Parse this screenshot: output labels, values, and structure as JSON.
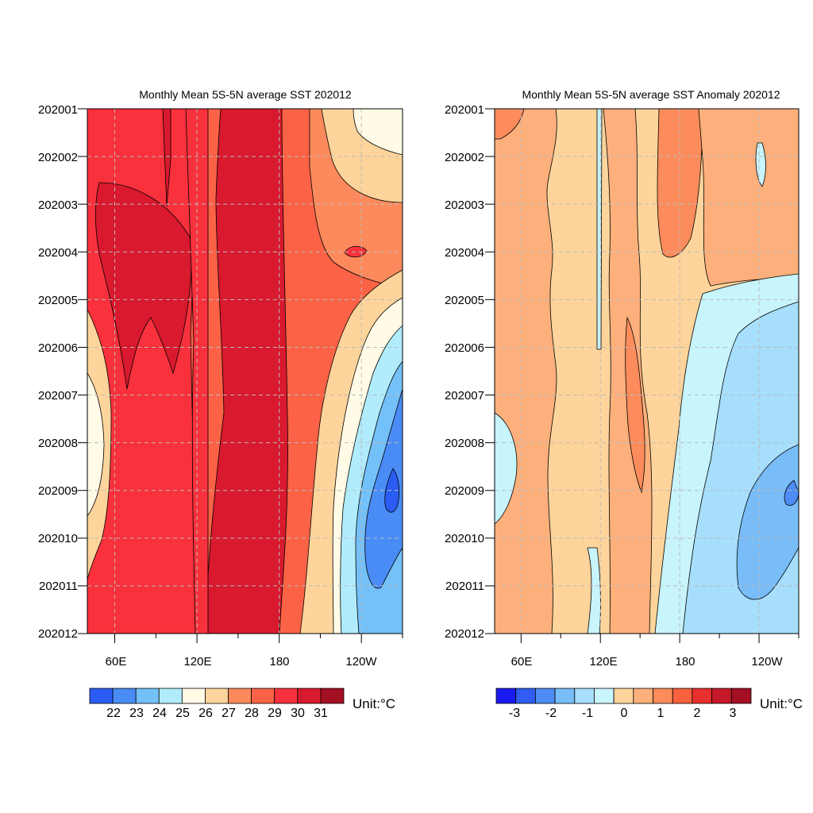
{
  "chart_data": [
    {
      "type": "heatmap",
      "title": "Monthly Mean 5S-5N average SST  202012",
      "xlabel": "",
      "ylabel": "",
      "x_ticks": [
        {
          "label": "60E",
          "lon": 60
        },
        {
          "label": "120E",
          "lon": 120
        },
        {
          "label": "180",
          "lon": 180
        },
        {
          "label": "120W",
          "lon": 240
        }
      ],
      "xlim": [
        40,
        270
      ],
      "y_ticks": [
        "202001",
        "202002",
        "202003",
        "202004",
        "202005",
        "202006",
        "202007",
        "202008",
        "202009",
        "202010",
        "202011",
        "202012"
      ],
      "colorbar": {
        "labels": [
          "22",
          "23",
          "24",
          "25",
          "26",
          "27",
          "28",
          "29",
          "30",
          "31"
        ],
        "colors": [
          "#2a5cf4",
          "#4a8cf6",
          "#74c0f8",
          "#b0ecfc",
          "#fffbe6",
          "#fdd49b",
          "#fc8a5c",
          "#fb6246",
          "#f8313c",
          "#d8192e",
          "#a50f24"
        ],
        "unit": "Unit:°C"
      },
      "grid": true
    },
    {
      "type": "heatmap",
      "title": "Monthly Mean 5S-5N average SST Anomaly 202012",
      "xlabel": "",
      "ylabel": "",
      "x_ticks": [
        {
          "label": "60E",
          "lon": 60
        },
        {
          "label": "120E",
          "lon": 120
        },
        {
          "label": "180",
          "lon": 180
        },
        {
          "label": "120W",
          "lon": 240
        }
      ],
      "xlim": [
        40,
        270
      ],
      "y_ticks": [
        "202001",
        "202002",
        "202003",
        "202004",
        "202005",
        "202006",
        "202007",
        "202008",
        "202009",
        "202010",
        "202011",
        "202012"
      ],
      "colorbar": {
        "labels": [
          "-3",
          "-2",
          "-1",
          "0",
          "1",
          "2",
          "3"
        ],
        "colors": [
          "#1a1af0",
          "#2e5cf4",
          "#4c8cf4",
          "#78bcf8",
          "#a6defc",
          "#c8f4fc",
          "#fdd49b",
          "#fdb07c",
          "#fc8c5c",
          "#f8603e",
          "#e8302e",
          "#c51828",
          "#a50f24"
        ],
        "unit": "Unit:°C"
      },
      "grid": true
    }
  ]
}
